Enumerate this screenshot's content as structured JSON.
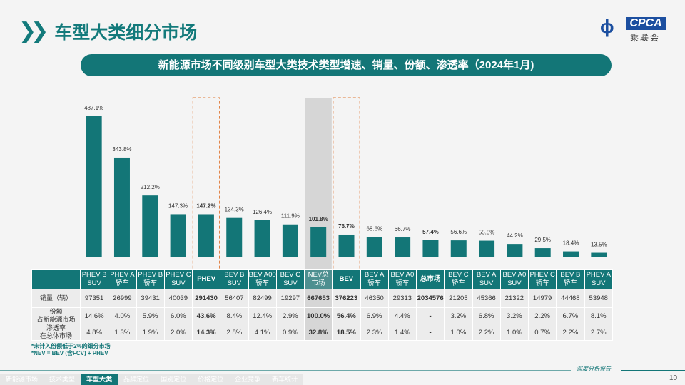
{
  "header": {
    "title": "车型大类细分市场",
    "logo_text": "CPCA",
    "logo_cn": "乘联会"
  },
  "banner": "新能源市场不同级别车型大类技术类型增速、销量、份额、渗透率（2024年1月)",
  "chart_data": {
    "type": "bar",
    "categories": [
      "PHEV B SUV",
      "PHEV A 轿车",
      "PHEV B 轿车",
      "PHEV C SUV",
      "PHEV",
      "BEV B SUV",
      "BEV A00 轿车",
      "BEV C SUV",
      "NEV总 市场",
      "BEV",
      "BEV A 轿车",
      "BEV A0 轿车",
      "总市场",
      "BEV C 轿车",
      "BEV A SUV",
      "BEV A0 SUV",
      "PHEV C 轿车",
      "BEV B 轿车",
      "PHEV A SUV"
    ],
    "values": [
      487.1,
      343.8,
      212.2,
      147.3,
      147.2,
      134.3,
      126.4,
      111.9,
      101.8,
      76.7,
      68.6,
      66.7,
      57.4,
      56.6,
      55.5,
      44.2,
      29.5,
      18.4,
      13.5
    ],
    "value_labels": [
      "487.1%",
      "343.8%",
      "212.2%",
      "147.3%",
      "147.2%",
      "134.3%",
      "126.4%",
      "111.9%",
      "101.8%",
      "76.7%",
      "68.6%",
      "66.7%",
      "57.4%",
      "56.6%",
      "55.5%",
      "44.2%",
      "29.5%",
      "18.4%",
      "13.5%"
    ],
    "bold": [
      4,
      8,
      9,
      12
    ],
    "highlight_dashed": [
      4,
      9
    ],
    "highlight_shaded": [
      8
    ],
    "bar_color": "#137677",
    "dash_color": "#e07b39",
    "grid": false,
    "ylim": [
      0,
      500
    ]
  },
  "table": {
    "headers": [
      [
        "PHEV B",
        "SUV"
      ],
      [
        "PHEV A",
        "轿车"
      ],
      [
        "PHEV B",
        "轿车"
      ],
      [
        "PHEV C",
        "SUV"
      ],
      [
        "PHEV",
        ""
      ],
      [
        "BEV B",
        "SUV"
      ],
      [
        "BEV A00",
        "轿车"
      ],
      [
        "BEV C",
        "SUV"
      ],
      [
        "NEV总",
        "市场"
      ],
      [
        "BEV",
        ""
      ],
      [
        "BEV A",
        "轿车"
      ],
      [
        "BEV A0",
        "轿车"
      ],
      [
        "总市场",
        ""
      ],
      [
        "BEV C",
        "轿车"
      ],
      [
        "BEV A",
        "SUV"
      ],
      [
        "BEV A0",
        "SUV"
      ],
      [
        "PHEV C",
        "轿车"
      ],
      [
        "BEV B",
        "轿车"
      ],
      [
        "PHEV A",
        "SUV"
      ]
    ],
    "rows": [
      {
        "label": [
          "销量（辆）",
          ""
        ],
        "values": [
          "97351",
          "26999",
          "39431",
          "40039",
          "291430",
          "56407",
          "82499",
          "19297",
          "667653",
          "376223",
          "46350",
          "29313",
          "2034576",
          "21205",
          "45366",
          "21322",
          "14979",
          "44468",
          "53948"
        ]
      },
      {
        "label": [
          "份额",
          "占新能源市场"
        ],
        "values": [
          "14.6%",
          "4.0%",
          "5.9%",
          "6.0%",
          "43.6%",
          "8.4%",
          "12.4%",
          "2.9%",
          "100.0%",
          "56.4%",
          "6.9%",
          "4.4%",
          "-",
          "3.2%",
          "6.8%",
          "3.2%",
          "2.2%",
          "6.7%",
          "8.1%"
        ]
      },
      {
        "label": [
          "渗透率",
          "在总体市场"
        ],
        "values": [
          "4.8%",
          "1.3%",
          "1.9%",
          "2.0%",
          "14.3%",
          "2.8%",
          "4.1%",
          "0.9%",
          "32.8%",
          "18.5%",
          "2.3%",
          "1.4%",
          "-",
          "1.0%",
          "2.2%",
          "1.0%",
          "0.7%",
          "2.2%",
          "2.7%"
        ]
      }
    ]
  },
  "footnotes": [
    "*未计入份额低于2%的细分市场",
    "*NEV = BEV (含FCV) + PHEV"
  ],
  "nav": {
    "items": [
      "新能源市场",
      "技术类型",
      "车型大类",
      "品牌定位",
      "国别定位",
      "价格定位",
      "企业竞争",
      "新车统计"
    ],
    "active": 2
  },
  "footer": {
    "report": "深度分析报告",
    "page": "10"
  }
}
